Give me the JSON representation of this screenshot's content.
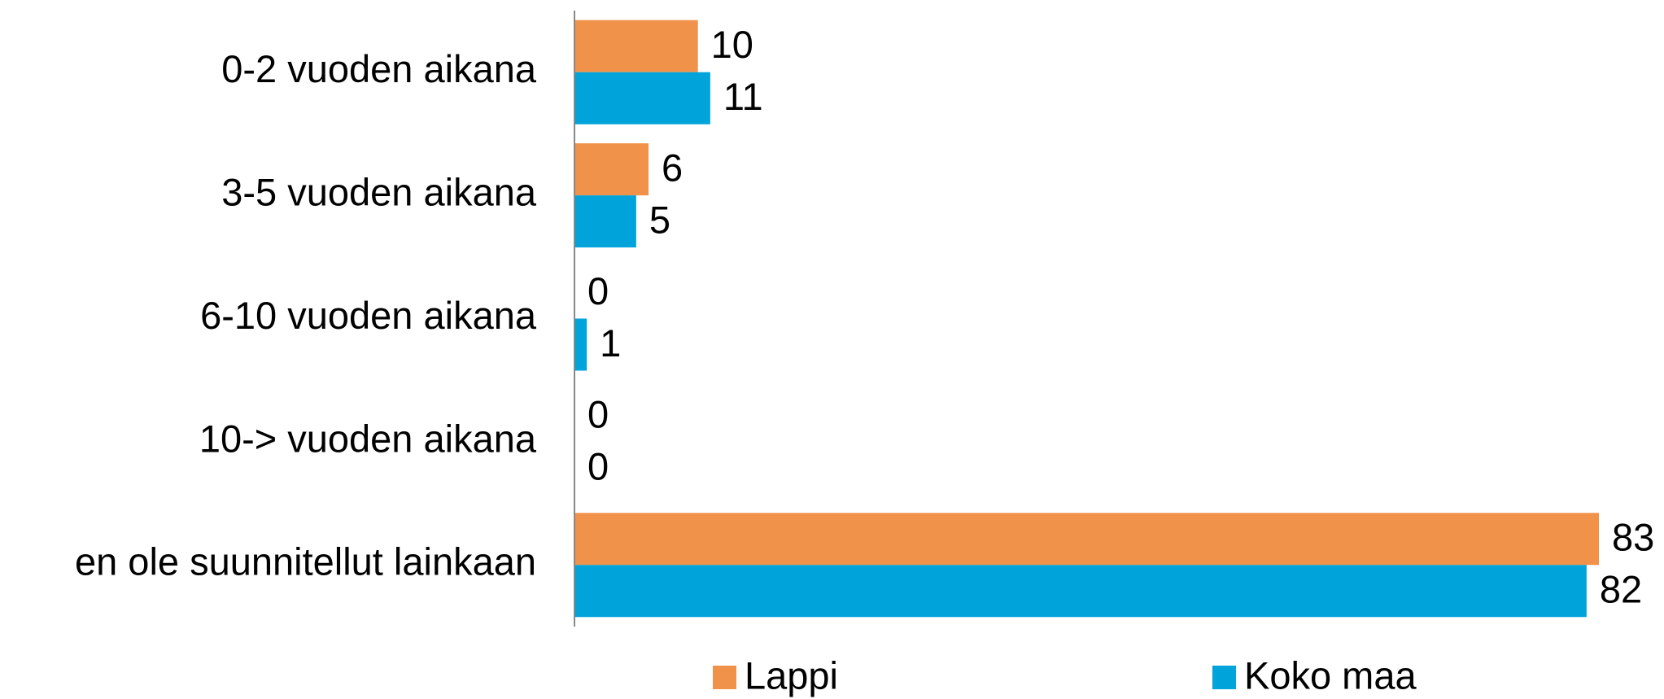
{
  "chart_data": {
    "type": "bar",
    "orientation": "horizontal",
    "categories": [
      "0-2 vuoden aikana",
      "3-5 vuoden aikana",
      "6-10 vuoden aikana",
      "10-> vuoden aikana",
      "en ole suunnitellut lainkaan"
    ],
    "series": [
      {
        "name": "Lappi",
        "color": "#f0924a",
        "values": [
          10,
          6,
          0,
          0,
          83
        ]
      },
      {
        "name": "Koko maa",
        "color": "#00a3da",
        "values": [
          11,
          5,
          1,
          0,
          82
        ]
      }
    ],
    "legend": "bottom"
  }
}
